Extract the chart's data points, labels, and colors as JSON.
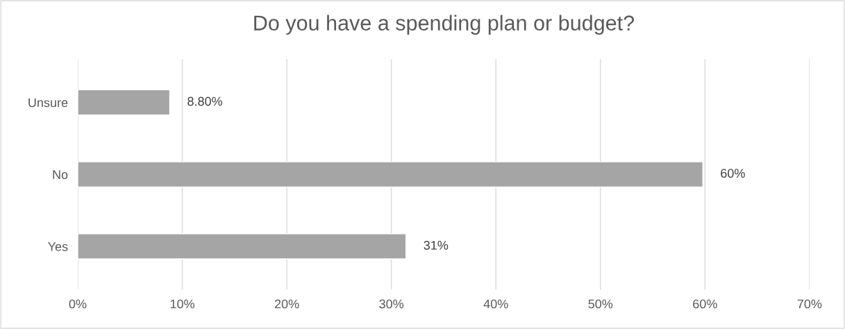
{
  "chart_data": {
    "type": "bar",
    "orientation": "horizontal",
    "title": "Do you have a spending plan or budget?",
    "categories": [
      "Unsure",
      "No",
      "Yes"
    ],
    "values": [
      8.8,
      59.8,
      31.4
    ],
    "value_labels": [
      "8.80%",
      "60%",
      "31%"
    ],
    "color": "#a5a5a5",
    "xlim": [
      0,
      70
    ],
    "xticks": [
      {
        "value": 0,
        "label": "0%"
      },
      {
        "value": 10,
        "label": "10%"
      },
      {
        "value": 20,
        "label": "20%"
      },
      {
        "value": 30,
        "label": "30%"
      },
      {
        "value": 40,
        "label": "40%"
      },
      {
        "value": 50,
        "label": "50%"
      },
      {
        "value": 60,
        "label": "60%"
      },
      {
        "value": 70,
        "label": "70%"
      }
    ],
    "grid": "x"
  }
}
